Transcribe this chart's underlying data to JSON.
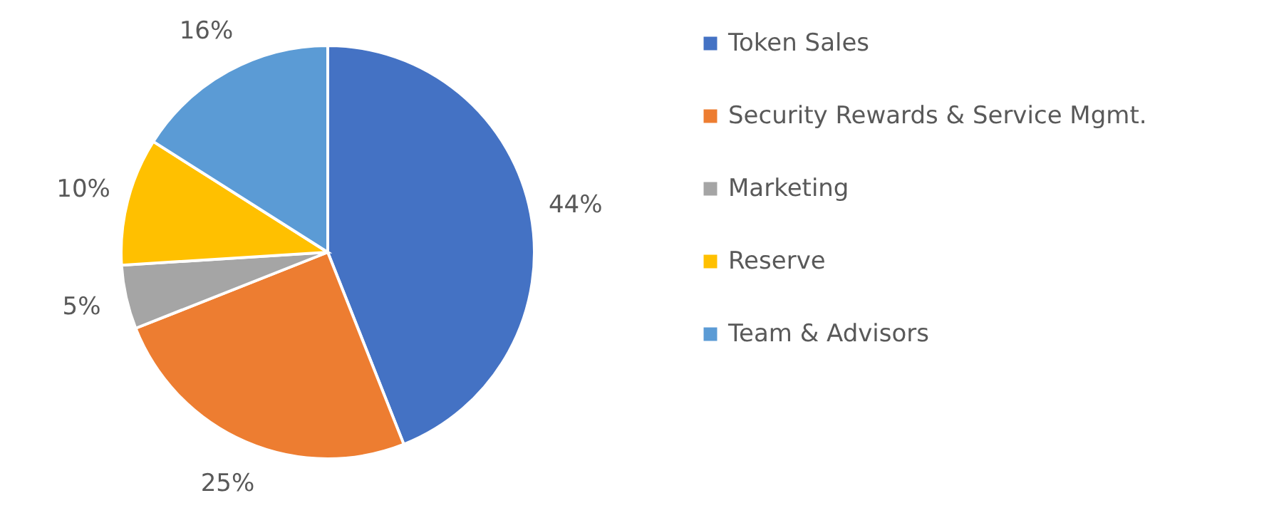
{
  "chart_data": {
    "type": "pie",
    "categories": [
      "Token Sales",
      "Security Rewards & Service Mgmt.",
      "Marketing",
      "Reserve",
      "Team & Advisors"
    ],
    "values": [
      44,
      25,
      5,
      10,
      16
    ],
    "colors": [
      "#4472c4",
      "#ed7d31",
      "#a5a5a5",
      "#ffc000",
      "#5b9bd5"
    ],
    "value_labels": [
      "44%",
      "25%",
      "5%",
      "10%",
      "16%"
    ],
    "legend": "right"
  }
}
